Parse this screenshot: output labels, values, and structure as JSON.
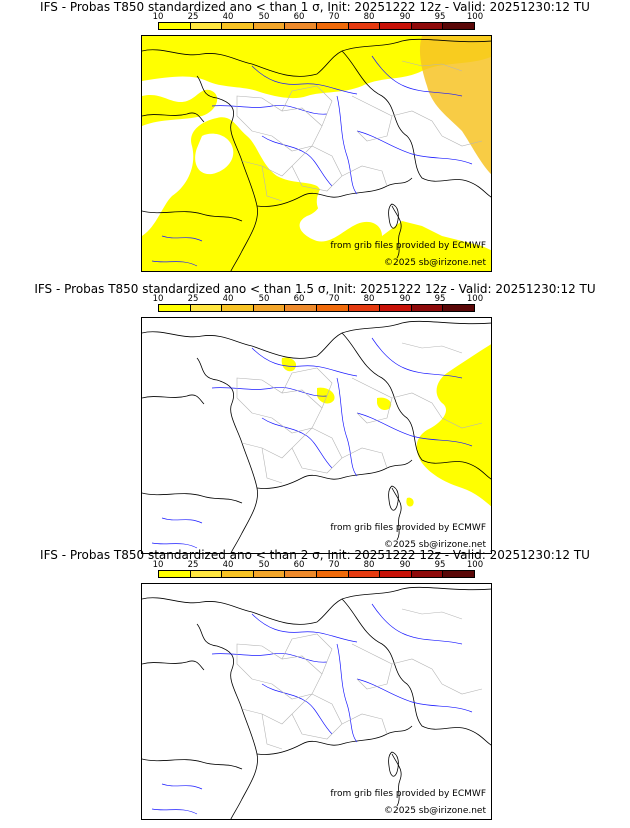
{
  "colorbar": {
    "ticks": [
      "10",
      "25",
      "40",
      "50",
      "60",
      "70",
      "80",
      "90",
      "95",
      "100"
    ],
    "colors": [
      "#ffff00",
      "#ffe640",
      "#f7c325",
      "#f3a62a",
      "#ee8a2b",
      "#f06a0a",
      "#e43a10",
      "#c81208",
      "#8e0a0a",
      "#5a0707"
    ]
  },
  "panels": [
    {
      "title": "IFS - Probas T850  standardized ano < than 1 σ, Init: 20251222 12z - Valid: 20251230:12 TU",
      "source": "from grib files provided by ECMWF",
      "copyright": "©2025 sb@irizone.net"
    },
    {
      "title": "IFS - Probas T850  standardized ano < than 1.5 σ, Init: 20251222 12z - Valid: 20251230:12 TU",
      "source": "from grib files provided by ECMWF",
      "copyright": "©2025 sb@irizone.net"
    },
    {
      "title": "IFS - Probas T850  standardized ano < than 2 σ, Init: 20251222 12z - Valid: 20251230:12 TU",
      "source": "from grib files provided by ECMWF",
      "copyright": "©2025 sb@irizone.net"
    }
  ],
  "colors": {
    "coast": "#000000",
    "rivers": "#1a1aff",
    "regions": "#b5b5b5",
    "prob_low": "#ffff00",
    "prob_mid": "#ffe640",
    "prob_high": "#f7c325"
  }
}
